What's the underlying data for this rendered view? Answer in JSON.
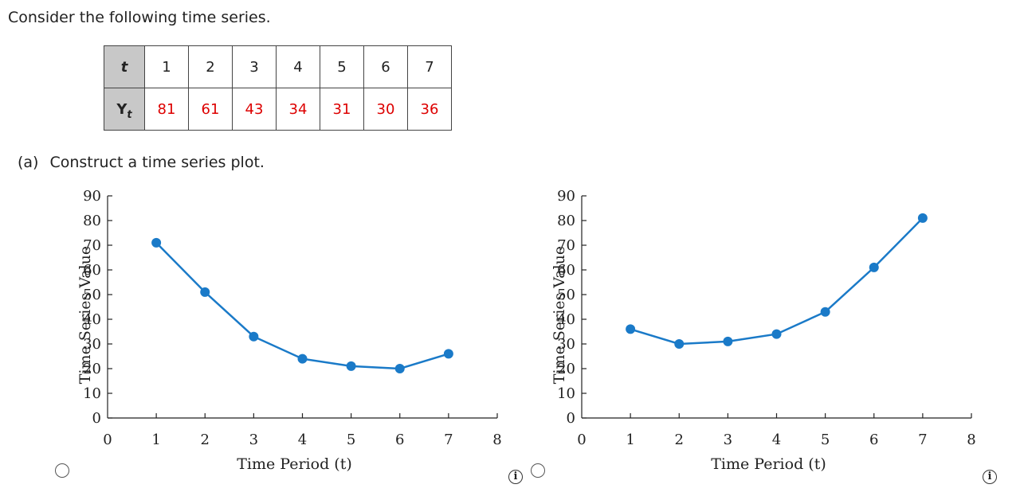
{
  "intro_text": "Consider the following time series.",
  "table": {
    "t_label": "t",
    "y_label": "Y",
    "y_sub": "t",
    "t_values": [
      "1",
      "2",
      "3",
      "4",
      "5",
      "6",
      "7"
    ],
    "y_values": [
      "81",
      "61",
      "43",
      "34",
      "31",
      "30",
      "36"
    ]
  },
  "question": {
    "label": "(a)",
    "text": "Construct a time series plot."
  },
  "info_symbol": "i",
  "line_color": "#1a7ac8",
  "chart_data": [
    {
      "type": "line",
      "xlabel": "Time Period (t)",
      "ylabel": "Time Series Value",
      "x": [
        1,
        2,
        3,
        4,
        5,
        6,
        7
      ],
      "series": [
        {
          "values": [
            71,
            51,
            33,
            24,
            21,
            20,
            26
          ]
        }
      ],
      "xlim": [
        0,
        8
      ],
      "ylim": [
        0,
        90
      ],
      "xticks": [
        0,
        1,
        2,
        3,
        4,
        5,
        6,
        7,
        8
      ],
      "yticks": [
        0,
        10,
        20,
        30,
        40,
        50,
        60,
        70,
        80,
        90
      ],
      "grid": false
    },
    {
      "type": "line",
      "xlabel": "Time Period (t)",
      "ylabel": "Time Series Value",
      "x": [
        1,
        2,
        3,
        4,
        5,
        6,
        7
      ],
      "series": [
        {
          "values": [
            36,
            30,
            31,
            34,
            43,
            61,
            81
          ]
        }
      ],
      "xlim": [
        0,
        8
      ],
      "ylim": [
        0,
        90
      ],
      "xticks": [
        0,
        1,
        2,
        3,
        4,
        5,
        6,
        7,
        8
      ],
      "yticks": [
        0,
        10,
        20,
        30,
        40,
        50,
        60,
        70,
        80,
        90
      ],
      "grid": false
    }
  ]
}
